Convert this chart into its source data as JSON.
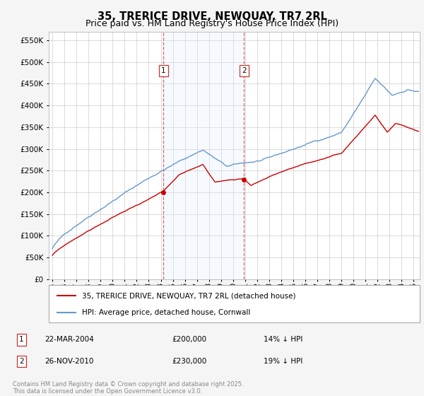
{
  "title": "35, TRERICE DRIVE, NEWQUAY, TR7 2RL",
  "subtitle": "Price paid vs. HM Land Registry's House Price Index (HPI)",
  "ylabel_ticks": [
    0,
    50000,
    100000,
    150000,
    200000,
    250000,
    300000,
    350000,
    400000,
    450000,
    500000,
    550000
  ],
  "ylim": [
    0,
    570000
  ],
  "xlim_start": 1994.7,
  "xlim_end": 2025.5,
  "sale1_date": 2004.22,
  "sale1_price": 200000,
  "sale1_label": "1",
  "sale1_text": "22-MAR-2004",
  "sale1_price_str": "£200,000",
  "sale1_pct": "14% ↓ HPI",
  "sale2_date": 2010.9,
  "sale2_price": 230000,
  "sale2_label": "2",
  "sale2_text": "26-NOV-2010",
  "sale2_price_str": "£230,000",
  "sale2_pct": "19% ↓ HPI",
  "legend1": "35, TRERICE DRIVE, NEWQUAY, TR7 2RL (detached house)",
  "legend2": "HPI: Average price, detached house, Cornwall",
  "footer": "Contains HM Land Registry data © Crown copyright and database right 2025.\nThis data is licensed under the Open Government Licence v3.0.",
  "line_red": "#cc0000",
  "line_blue": "#6699cc",
  "vline_color": "#dd6666",
  "shade_color": "#ddeeff",
  "bg_color": "#ffffff",
  "grid_color": "#cccccc",
  "title_fontsize": 10.5,
  "subtitle_fontsize": 9,
  "tick_fontsize": 7.5,
  "label_box_color": "#cc3333",
  "xticks": [
    1995,
    1996,
    1997,
    1998,
    1999,
    2000,
    2001,
    2002,
    2003,
    2004,
    2005,
    2006,
    2007,
    2008,
    2009,
    2010,
    2011,
    2012,
    2013,
    2014,
    2015,
    2016,
    2017,
    2018,
    2019,
    2020,
    2021,
    2022,
    2023,
    2024,
    2025
  ]
}
